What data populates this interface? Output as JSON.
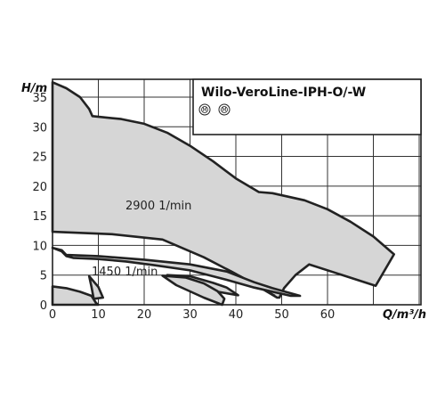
{
  "chart_data": {
    "type": "area",
    "title": "Wilo-VeroLine-IPH-O/-W",
    "xlabel": "Q/m³/h",
    "ylabel": "H/m",
    "xlim": [
      0,
      80
    ],
    "ylim": [
      0,
      38
    ],
    "x_ticks": [
      "0",
      "10",
      "20",
      "30",
      "40",
      "50",
      "60"
    ],
    "y_ticks": [
      "0",
      "5",
      "10",
      "15",
      "20",
      "25",
      "30",
      "35"
    ],
    "grid": true,
    "legend_icons": [
      "M",
      "M"
    ],
    "annotations": [
      "2900 1/min",
      "1450 1/min"
    ],
    "series": [
      {
        "name": "2900 1/min",
        "outline": [
          [
            0,
            37.5
          ],
          [
            3,
            36.5
          ],
          [
            6,
            35
          ],
          [
            8,
            33
          ],
          [
            8.7,
            31.8
          ],
          [
            15,
            31.3
          ],
          [
            20,
            30.5
          ],
          [
            25,
            29
          ],
          [
            30,
            26.8
          ],
          [
            35,
            24.2
          ],
          [
            40,
            21.3
          ],
          [
            45,
            19
          ],
          [
            48,
            18.8
          ],
          [
            55,
            17.6
          ],
          [
            60,
            16.1
          ],
          [
            65,
            14
          ],
          [
            70,
            11.5
          ],
          [
            74.5,
            8.5
          ],
          [
            70.5,
            3.2
          ],
          [
            56,
            6.8
          ],
          [
            53,
            5
          ],
          [
            50.5,
            2.8
          ],
          [
            49.5,
            1.2
          ],
          [
            49,
            1.2
          ],
          [
            44,
            3.5
          ],
          [
            39,
            5.6
          ],
          [
            33,
            8
          ],
          [
            24,
            11
          ],
          [
            13,
            11.9
          ],
          [
            0,
            12.3
          ]
        ],
        "dashed_limit": [
          [
            39,
            5.6
          ],
          [
            44,
            3.5
          ],
          [
            49,
            1.3
          ]
        ]
      },
      {
        "name": "1450 1/min",
        "outline": [
          [
            0,
            9.6
          ],
          [
            2,
            9
          ],
          [
            3,
            8.2
          ],
          [
            4.5,
            7.9
          ],
          [
            10,
            7.7
          ],
          [
            16,
            7.3
          ],
          [
            22,
            6.7
          ],
          [
            30,
            5.8
          ],
          [
            38,
            4.2
          ],
          [
            44,
            2.9
          ],
          [
            52,
            1.5
          ],
          [
            54,
            1.5
          ],
          [
            48,
            2.8
          ],
          [
            44,
            3.8
          ],
          [
            38,
            5.6
          ],
          [
            30,
            6.8
          ],
          [
            20,
            7.6
          ],
          [
            10,
            8.2
          ],
          [
            3,
            8.4
          ],
          [
            2,
            9.2
          ]
        ]
      },
      {
        "name": "1450 1/min",
        "outline": [
          [
            25,
            5
          ],
          [
            30,
            4.8
          ],
          [
            35,
            3.7
          ],
          [
            38,
            2.9
          ],
          [
            40.5,
            1.6
          ],
          [
            36,
            2.2
          ],
          [
            31,
            3.5
          ]
        ]
      },
      {
        "name": "1450 1/min",
        "outline": [
          [
            0,
            3.1
          ],
          [
            3,
            2.8
          ],
          [
            6,
            2.2
          ],
          [
            8.5,
            1.5
          ],
          [
            9.5,
            0.3
          ],
          [
            10,
            0
          ],
          [
            0,
            0
          ]
        ]
      },
      {
        "name": "1450 1/min",
        "outline": [
          [
            8,
            4.8
          ],
          [
            10,
            3
          ],
          [
            11,
            1.2
          ],
          [
            9,
            1
          ],
          [
            8.5,
            3
          ]
        ]
      },
      {
        "name": "1450 1/min",
        "outline": [
          [
            24,
            4.9
          ],
          [
            29,
            4.6
          ],
          [
            33,
            3.6
          ],
          [
            36,
            2.3
          ],
          [
            37.5,
            1
          ],
          [
            37,
            0
          ],
          [
            33,
            1.2
          ],
          [
            27,
            3.3
          ]
        ]
      }
    ]
  }
}
